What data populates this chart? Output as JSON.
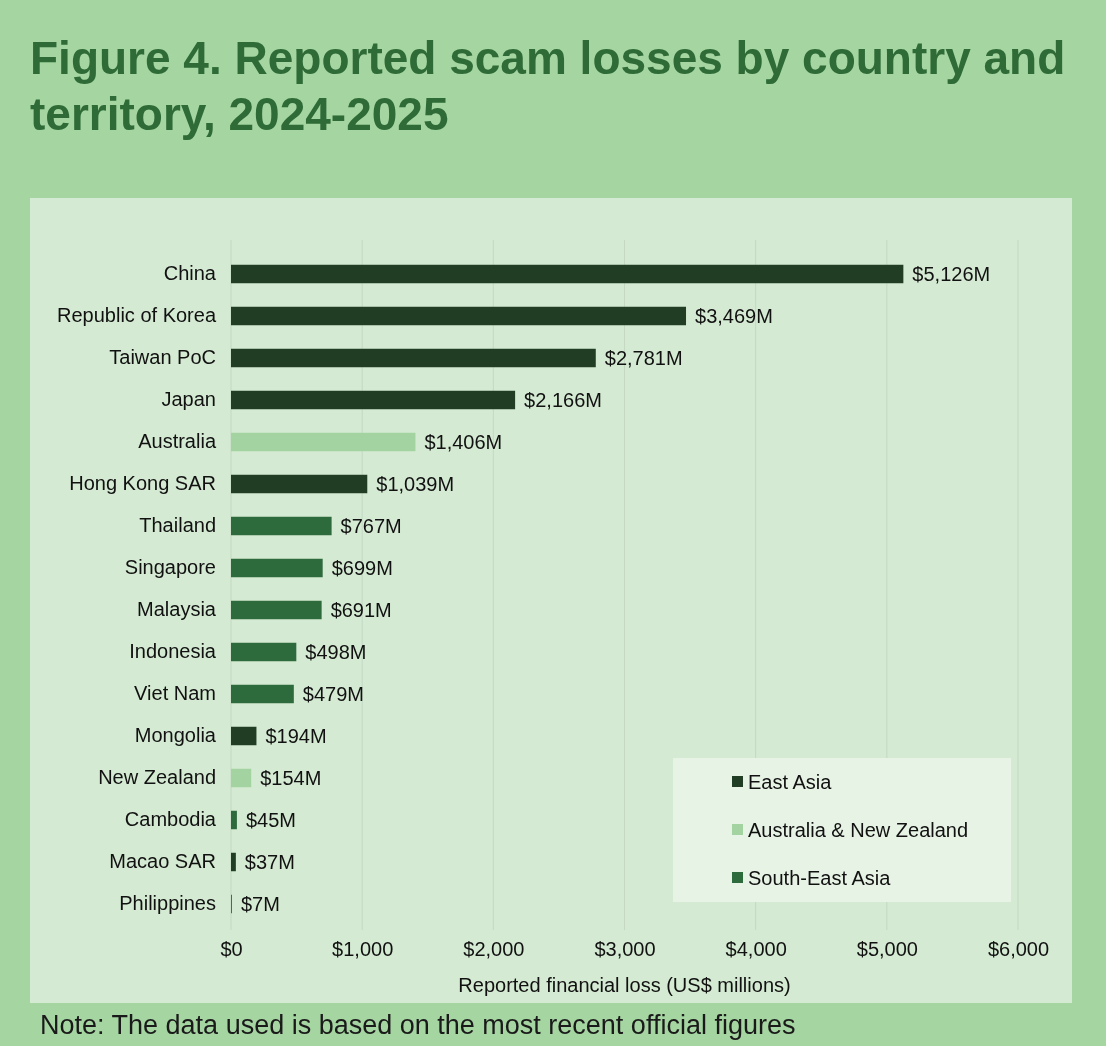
{
  "chart_data": {
    "type": "bar",
    "orientation": "horizontal",
    "stacked": true,
    "title": "Figure 4. Reported scam losses by country and territory, 2024-2025",
    "xlabel": "Reported financial loss (US$ millions)",
    "categories": [
      "China",
      "Republic of Korea",
      "Taiwan PoC",
      "Japan",
      "Australia",
      "Hong Kong SAR",
      "Thailand",
      "Singapore",
      "Malaysia",
      "Indonesia",
      "Viet Nam",
      "Mongolia",
      "New Zealand",
      "Cambodia",
      "Macao SAR",
      "Philippines"
    ],
    "series": [
      {
        "name": "East Asia",
        "color": "#213d24",
        "values": [
          5126,
          3469,
          2781,
          2166,
          null,
          1039,
          null,
          null,
          null,
          null,
          null,
          194,
          null,
          null,
          37,
          null
        ],
        "value_labels": [
          "$5,126M",
          "$3,469M",
          "$2,781M",
          "$2,166M",
          null,
          "$1,039M",
          null,
          null,
          null,
          null,
          null,
          "$194M",
          null,
          null,
          "$37M",
          null
        ]
      },
      {
        "name": "Australia & New Zealand",
        "color": "#a3d3a0",
        "values": [
          null,
          null,
          null,
          null,
          1406,
          null,
          null,
          null,
          null,
          null,
          null,
          null,
          154,
          null,
          null,
          null
        ],
        "value_labels": [
          null,
          null,
          null,
          null,
          "$1,406M",
          null,
          null,
          null,
          null,
          null,
          null,
          null,
          "$154M",
          null,
          null,
          null
        ]
      },
      {
        "name": "South-East Asia",
        "color": "#2e6b3c",
        "values": [
          null,
          null,
          null,
          null,
          null,
          null,
          767,
          699,
          691,
          498,
          479,
          null,
          null,
          45,
          null,
          7
        ],
        "value_labels": [
          null,
          null,
          null,
          null,
          null,
          null,
          "$767M",
          "$699M",
          "$691M",
          "$498M",
          "$479M",
          null,
          null,
          "$45M",
          null,
          "$7M"
        ]
      }
    ],
    "xlim": [
      0,
      6000
    ],
    "xticks": [
      {
        "value": 0,
        "label": "$0"
      },
      {
        "value": 1000,
        "label": "$1,000"
      },
      {
        "value": 2000,
        "label": "$2,000"
      },
      {
        "value": 3000,
        "label": "$3,000"
      },
      {
        "value": 4000,
        "label": "$4,000"
      },
      {
        "value": 5000,
        "label": "$5,000"
      },
      {
        "value": 6000,
        "label": "$6,000"
      }
    ],
    "grid": "x",
    "legend": "bottom right",
    "annotations": [
      "Note: The data used is based on the most recent official figures"
    ]
  }
}
